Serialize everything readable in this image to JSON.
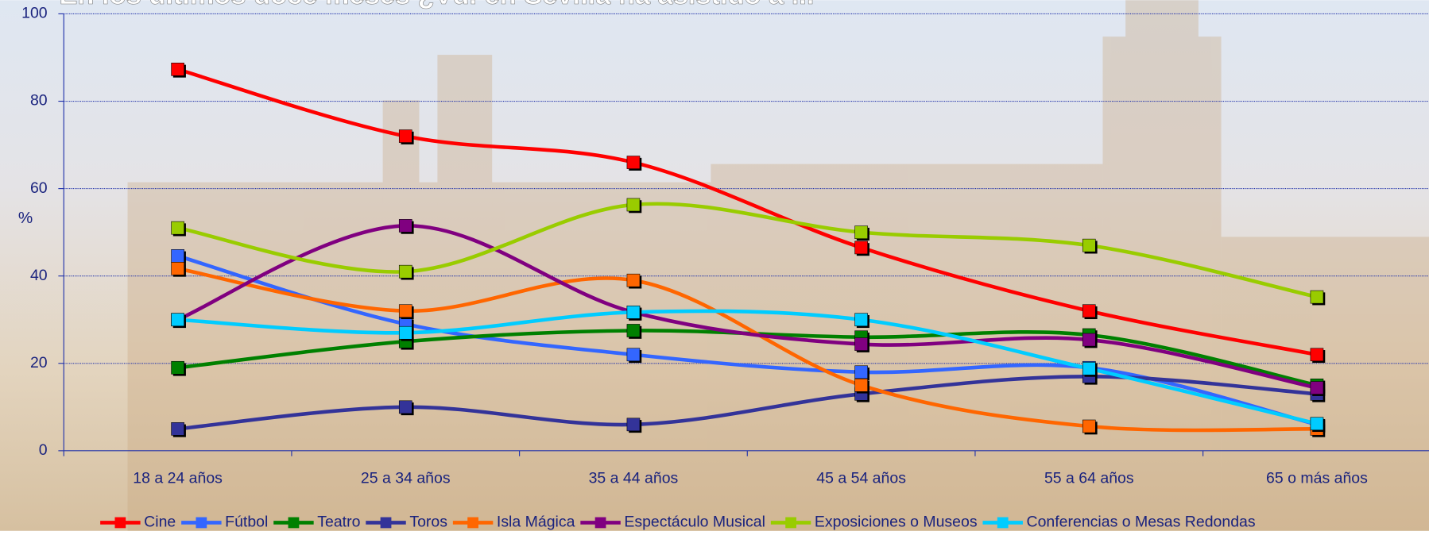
{
  "chart_data": {
    "type": "line",
    "title": "En los últimos doce meses ¿Vd. en Sevilla ha asistido a ...",
    "y_label": "%",
    "categories": [
      "18 a 24 años",
      "25 a 34 años",
      "35 a 44 años",
      "45 a 54 años",
      "55 a 64 años",
      "65 o más años"
    ],
    "ylim": [
      0,
      100
    ],
    "yticks": [
      0,
      20,
      40,
      60,
      80,
      100
    ],
    "grid": true,
    "smooth": true,
    "legend": "bottom",
    "series": [
      {
        "name": "Cine",
        "color": "#ff0000",
        "values": [
          87.3,
          72,
          66,
          46.5,
          32,
          22
        ]
      },
      {
        "name": "Fútbol",
        "color": "#3366ff",
        "values": [
          44.6,
          29,
          22,
          18,
          19,
          6
        ]
      },
      {
        "name": "Teatro",
        "color": "#008000",
        "values": [
          19,
          25,
          27.5,
          26,
          26.5,
          15
        ]
      },
      {
        "name": "Toros",
        "color": "#333399",
        "values": [
          5,
          10,
          6,
          13,
          17,
          13
        ]
      },
      {
        "name": "Isla Mágica",
        "color": "#ff6600",
        "values": [
          41.7,
          32,
          39,
          15,
          5.6,
          5
        ]
      },
      {
        "name": "Espectáculo Musical",
        "color": "#800080",
        "values": [
          30,
          51.5,
          31.7,
          24.4,
          25.4,
          14.4
        ]
      },
      {
        "name": "Exposiciones o Museos",
        "color": "#99cc00",
        "values": [
          51,
          41,
          56.3,
          50,
          47,
          35.2
        ]
      },
      {
        "name": "Conferencias o Mesas Redondas",
        "color": "#00ccff",
        "values": [
          30,
          27,
          31.7,
          30,
          18.8,
          6.2
        ]
      }
    ]
  }
}
